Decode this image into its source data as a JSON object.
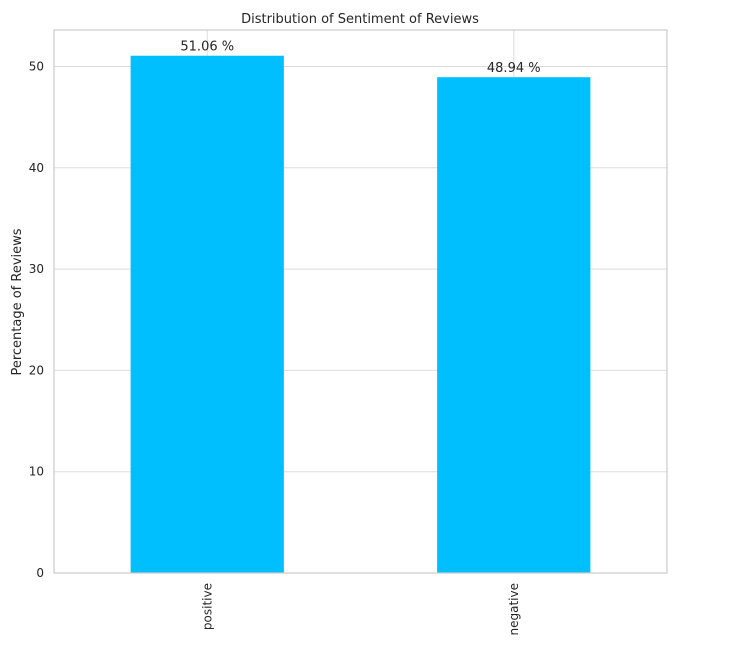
{
  "chart_data": {
    "type": "bar",
    "title": "Distribution of Sentiment of Reviews",
    "xlabel": "",
    "ylabel": "Percentage of Reviews",
    "categories": [
      "positive",
      "negative"
    ],
    "values": [
      51.06,
      48.94
    ],
    "data_labels": [
      "51.06 %",
      "48.94 %"
    ],
    "yticks": [
      0,
      10,
      20,
      30,
      40,
      50
    ],
    "ytick_labels": [
      "0",
      "10",
      "20",
      "30",
      "40",
      "50"
    ],
    "ylim": [
      0,
      53.6
    ],
    "grid": true,
    "bar_color": "#00bfff"
  }
}
